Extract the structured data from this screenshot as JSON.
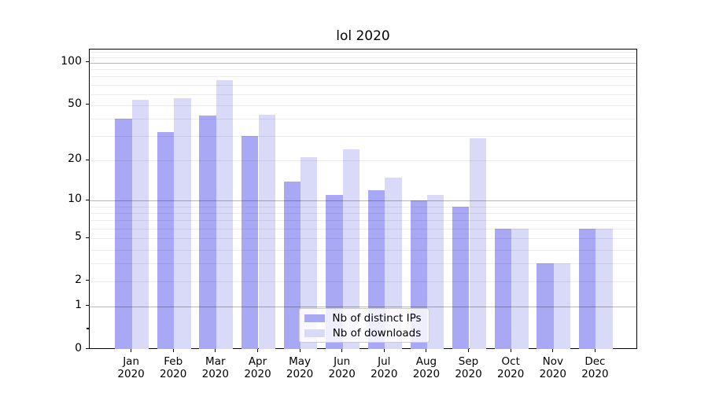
{
  "title": "lol 2020",
  "chart_data": {
    "type": "bar",
    "title": "lol 2020",
    "year_label": "2020",
    "categories": [
      "Jan",
      "Feb",
      "Mar",
      "Apr",
      "May",
      "Jun",
      "Jul",
      "Aug",
      "Sep",
      "Oct",
      "Nov",
      "Dec"
    ],
    "series": [
      {
        "name": "Nb of distinct IPs",
        "color": "#a8a8f5",
        "values": [
          40,
          32,
          42,
          30,
          14,
          11,
          12,
          10,
          9,
          6,
          3,
          6
        ]
      },
      {
        "name": "Nb of downloads",
        "color": "#d9d9f8",
        "values": [
          55,
          56,
          75,
          43,
          21,
          24,
          15,
          11,
          29,
          6,
          3,
          6
        ]
      }
    ],
    "yticks": [
      100,
      50,
      20,
      10,
      5,
      2,
      1,
      0
    ],
    "y_scale": "log10(value+1)",
    "ylim": [
      0,
      124
    ],
    "grid": true,
    "grid_major_at": [
      1,
      10,
      100
    ],
    "grid_minor_at": [
      2,
      3,
      4,
      5,
      6,
      7,
      8,
      9,
      20,
      30,
      40,
      50,
      60,
      70,
      80,
      90,
      110,
      120
    ],
    "legend_position": "bottom-center",
    "legend": [
      "Nb of distinct IPs",
      "Nb of downloads"
    ]
  }
}
